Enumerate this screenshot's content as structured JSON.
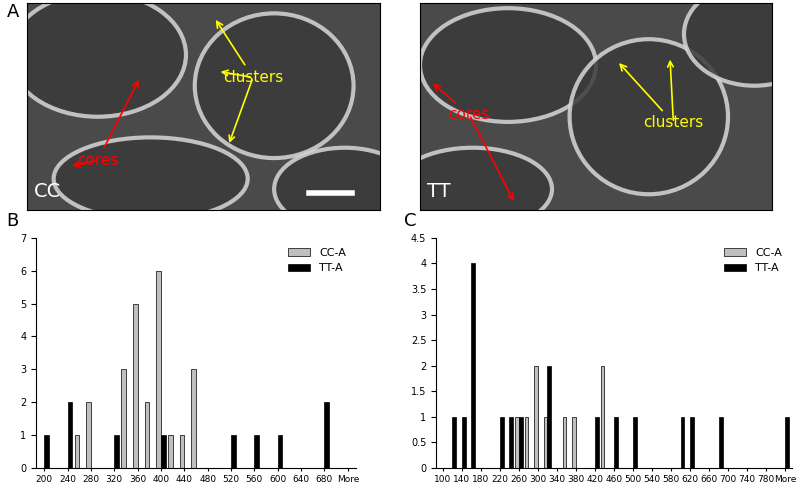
{
  "panel_labels": [
    "A",
    "B",
    "C"
  ],
  "images": [
    {
      "label": "CC",
      "annotations": [
        {
          "text": "clusters",
          "color": "yellow"
        },
        {
          "text": "cores",
          "color": "red"
        }
      ]
    },
    {
      "label": "TT",
      "annotations": [
        {
          "text": "clusters",
          "color": "yellow"
        },
        {
          "text": "cores",
          "color": "red"
        }
      ]
    }
  ],
  "chart_data": [
    {
      "type": "bar",
      "legend": "upper right",
      "categories": [
        "200",
        null,
        "240",
        null,
        "280",
        null,
        "320",
        null,
        "360",
        null,
        "400",
        null,
        "440",
        null,
        "480",
        null,
        "520",
        null,
        "560",
        null,
        "600",
        null,
        "640",
        null,
        "680",
        null,
        "More"
      ],
      "series": [
        {
          "name": "CC-A",
          "color": "#bfbfbf",
          "values": [
            0,
            0,
            0,
            1,
            2,
            0,
            0,
            3,
            5,
            2,
            6,
            1,
            1,
            3,
            0,
            0,
            0,
            0,
            0,
            0,
            0,
            0,
            0,
            0,
            0,
            0,
            0
          ]
        },
        {
          "name": "TT-A",
          "color": "#000000",
          "values": [
            1,
            0,
            2,
            0,
            0,
            0,
            1,
            0,
            0,
            0,
            1,
            0,
            0,
            0,
            0,
            0,
            1,
            0,
            1,
            0,
            1,
            0,
            0,
            0,
            2,
            0,
            0
          ]
        }
      ],
      "ylim": [
        0,
        7
      ],
      "yticks": [
        0,
        1,
        2,
        3,
        4,
        5,
        6,
        7
      ]
    },
    {
      "type": "bar",
      "legend": "upper right",
      "categories": [
        "100",
        null,
        "140",
        null,
        "180",
        null,
        "220",
        null,
        "260",
        null,
        "300",
        null,
        "340",
        null,
        "380",
        null,
        "420",
        null,
        "460",
        null,
        "500",
        null,
        "540",
        null,
        "580",
        null,
        "620",
        null,
        "660",
        null,
        "700",
        null,
        "740",
        null,
        "780",
        null,
        "More"
      ],
      "series": [
        {
          "name": "CC-A",
          "color": "#bfbfbf",
          "values": [
            0,
            0,
            0,
            0,
            0,
            0,
            0,
            0,
            1,
            1,
            2,
            1,
            0,
            1,
            1,
            0,
            0,
            2,
            0,
            0,
            0,
            0,
            0,
            0,
            0,
            0,
            0,
            0,
            0,
            0,
            0,
            0,
            0,
            0,
            0,
            0,
            0
          ]
        },
        {
          "name": "TT-A",
          "color": "#000000",
          "values": [
            0,
            1,
            1,
            4,
            0,
            0,
            1,
            1,
            1,
            0,
            0,
            2,
            0,
            0,
            0,
            0,
            1,
            0,
            1,
            0,
            1,
            0,
            0,
            0,
            0,
            1,
            1,
            0,
            0,
            1,
            0,
            0,
            0,
            0,
            0,
            0,
            1
          ]
        }
      ],
      "ylim": [
        0,
        4.5
      ],
      "yticks": [
        0,
        0.5,
        1,
        1.5,
        2,
        2.5,
        3,
        3.5,
        4,
        4.5
      ]
    }
  ]
}
